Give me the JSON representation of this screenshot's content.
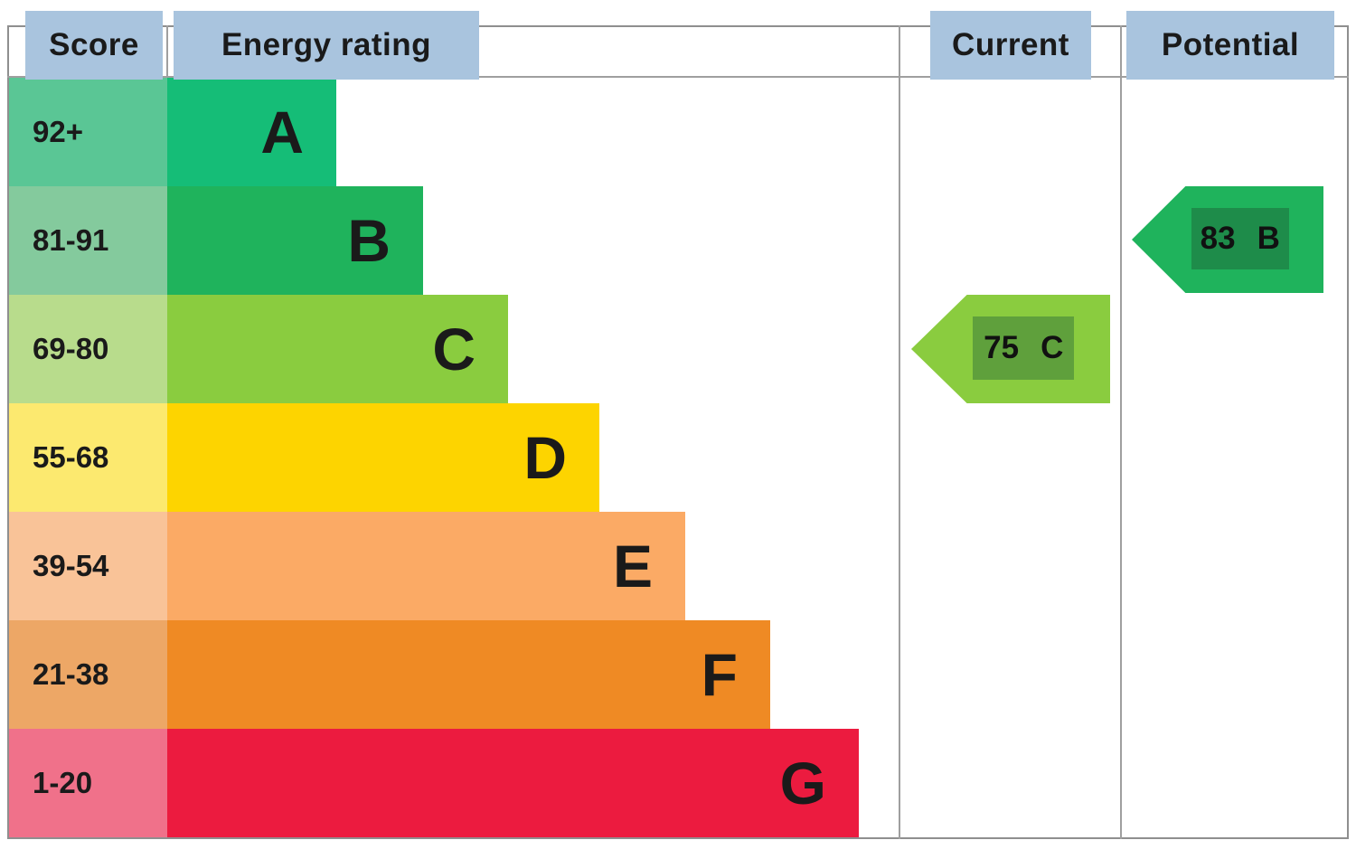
{
  "title": "Energy efficiency rating chart",
  "header": {
    "score_label": "Score",
    "energy_rating_label": "Energy rating",
    "current_label": "Current",
    "potential_label": "Potential"
  },
  "colors": {
    "header_highlight": "#a9c4de",
    "table_border": "#8f8f8f",
    "grid_line": "#9f9f9f",
    "text": "#1a1a1a"
  },
  "chart_data": {
    "type": "bar",
    "orientation": "horizontal",
    "title": "EPC energy efficiency rating",
    "columns": [
      "Score",
      "Energy rating",
      "Current",
      "Potential"
    ],
    "bands": [
      {
        "letter": "A",
        "score_range": "92+",
        "bar_color": "#15bd77",
        "score_tint": "#5ac695",
        "bar_width_pct": 23.1
      },
      {
        "letter": "B",
        "score_range": "81-91",
        "bar_color": "#1fb35c",
        "score_tint": "#84ca9d",
        "bar_width_pct": 34.9
      },
      {
        "letter": "C",
        "score_range": "69-80",
        "bar_color": "#8acc3f",
        "score_tint": "#b8dc8c",
        "bar_width_pct": 46.5
      },
      {
        "letter": "D",
        "score_range": "55-68",
        "bar_color": "#fdd400",
        "score_tint": "#fce96f",
        "bar_width_pct": 59.0
      },
      {
        "letter": "E",
        "score_range": "39-54",
        "bar_color": "#fbaa65",
        "score_tint": "#f9c398",
        "bar_width_pct": 70.7
      },
      {
        "letter": "F",
        "score_range": "21-38",
        "bar_color": "#ef8a24",
        "score_tint": "#eda766",
        "bar_width_pct": 82.3
      },
      {
        "letter": "G",
        "score_range": "1-20",
        "bar_color": "#ec1b3f",
        "score_tint": "#f0718a",
        "bar_width_pct": 94.4
      }
    ],
    "markers": [
      {
        "name": "current",
        "value": "75",
        "band_letter": "C",
        "column": "Current",
        "band_index": 2,
        "arrow_color": "#8acc3f",
        "inner_color": "#5fa03c"
      },
      {
        "name": "potential",
        "value": "83",
        "band_letter": "B",
        "column": "Potential",
        "band_index": 1,
        "arrow_color": "#1fb35c",
        "inner_color": "#1e8c4a"
      }
    ]
  }
}
